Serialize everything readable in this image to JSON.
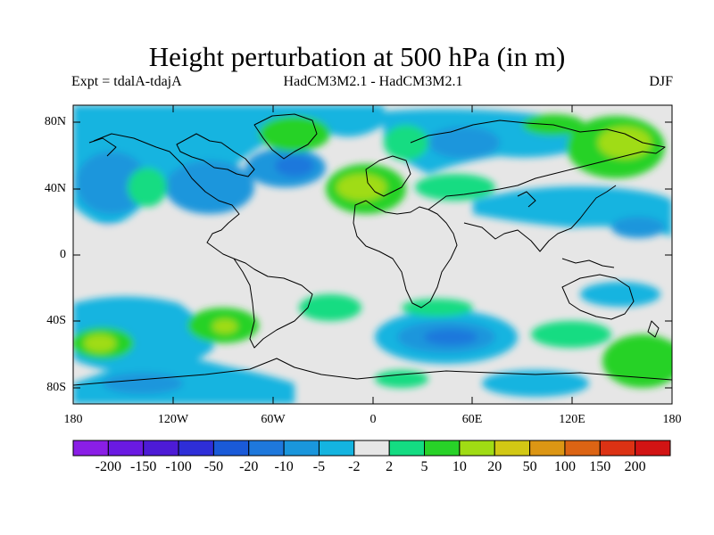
{
  "header": {
    "title": "Height perturbation at 500 hPa (in m)",
    "left": "Expt = tdalA-tdajA",
    "center": "HadCM3M2.1 - HadCM3M2.1",
    "right": "DJF"
  },
  "chart_data": {
    "type": "heatmap",
    "title": "Height perturbation at 500 hPa (in m)",
    "variable": "500 hPa geopotential height perturbation",
    "units": "m",
    "season": "DJF",
    "x_range": [
      -180,
      180
    ],
    "y_range": [
      -90,
      90
    ],
    "lat_ticks": [
      {
        "value": 80,
        "label": "80N"
      },
      {
        "value": 40,
        "label": "40N"
      },
      {
        "value": 0,
        "label": "0"
      },
      {
        "value": -40,
        "label": "40S"
      },
      {
        "value": -80,
        "label": "80S"
      }
    ],
    "lon_ticks": [
      {
        "value": -180,
        "label": "180"
      },
      {
        "value": -120,
        "label": "120W"
      },
      {
        "value": -60,
        "label": "60W"
      },
      {
        "value": 0,
        "label": "0"
      },
      {
        "value": 60,
        "label": "60E"
      },
      {
        "value": 120,
        "label": "120E"
      },
      {
        "value": 180,
        "label": "180"
      }
    ],
    "colorbar": {
      "labels": [
        "-200",
        "-150",
        "-100",
        "-50",
        "-20",
        "-10",
        "-5",
        "-2",
        "2",
        "5",
        "10",
        "20",
        "50",
        "100",
        "150",
        "200"
      ],
      "colors": [
        "#8a1ee6",
        "#6a1ae2",
        "#4d1bd6",
        "#2e2ed8",
        "#1a5ad8",
        "#1e78dc",
        "#1a96dc",
        "#14b4e0",
        "#e6e6e6",
        "#14dc82",
        "#28d228",
        "#a0dc14",
        "#d2c814",
        "#dc9614",
        "#dc6414",
        "#dc3214",
        "#d21414"
      ]
    },
    "anomaly_regions": [
      {
        "region": "Arctic / North Pacific (180-90W, 60N-90N)",
        "sign": "negative",
        "range": "-2 to -10"
      },
      {
        "region": "Western North America (120W-90W, 40N-60N)",
        "sign": "negative",
        "range": "-5 to -10"
      },
      {
        "region": "North Atlantic (60W-30W, 40N-60N)",
        "sign": "negative",
        "range": "-5 to -20"
      },
      {
        "region": "Greenland / Canadian Arctic (60W-20W, 60N-90N)",
        "sign": "positive",
        "range": "2 to 10"
      },
      {
        "region": "Western Europe / Eastern Atlantic (30W-10E, 30N-55N)",
        "sign": "positive",
        "range": "2 to 20"
      },
      {
        "region": "Northern Siberia (60E-120E, 60N-90N)",
        "sign": "negative",
        "range": "-2 to -10"
      },
      {
        "region": "Central Asia (30E-90E, 30N-60N)",
        "sign": "positive",
        "range": "2 to 5"
      },
      {
        "region": "Northeast Asia / North Pacific (120E-180, 40N-80N)",
        "sign": "positive",
        "range": "2 to 20"
      },
      {
        "region": "Central North Pacific (120E-180, 20N-40N)",
        "sign": "negative",
        "range": "-2 to -10"
      },
      {
        "region": "Southeast Pacific (180-110W, 30S-60S)",
        "sign": "mixed",
        "range": "-10 to 20"
      },
      {
        "region": "South Atlantic (30W-0, 30S-50S)",
        "sign": "positive",
        "range": "2 to 5"
      },
      {
        "region": "Southern Indian Ocean (0-90E, 30S-60S)",
        "sign": "negative",
        "range": "-2 to -20"
      },
      {
        "region": "South of Australia (120E-180, 40S-70S)",
        "sign": "positive",
        "range": "2 to 10"
      },
      {
        "region": "Antarctic coast (180-60W, 60S-75S)",
        "sign": "negative",
        "range": "-2 to -10"
      }
    ]
  }
}
